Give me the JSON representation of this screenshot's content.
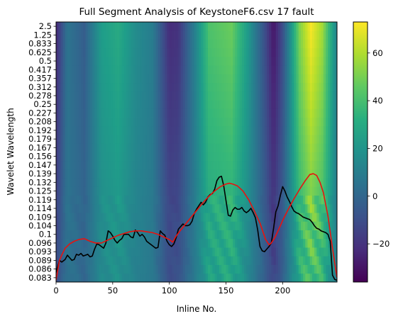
{
  "chart_data": {
    "type": "heatmap",
    "title": "Full Segment Analysis of KeystoneF6.csv 17 fault",
    "xlabel": "Inline No.",
    "ylabel": "Wavelet Wavelength",
    "xlim": [
      0,
      248
    ],
    "x_ticks": [
      "0",
      "50",
      "100",
      "150",
      "200"
    ],
    "y_tick_labels": [
      "2.5",
      "1.25",
      "0.833",
      "0.625",
      "0.5",
      "0.417",
      "0.357",
      "0.312",
      "0.278",
      "0.25",
      "0.227",
      "0.208",
      "0.192",
      "0.179",
      "0.167",
      "0.156",
      "0.147",
      "0.139",
      "0.132",
      "0.125",
      "0.119",
      "0.114",
      "0.109",
      "0.104",
      "0.1",
      "0.096",
      "0.093",
      "0.089",
      "0.086",
      "0.083"
    ],
    "colormap": "viridis",
    "colorbar": {
      "min": -36,
      "max": 73,
      "ticks": [
        "60",
        "40",
        "20",
        "0",
        "−20"
      ]
    },
    "heatmap_column_profile": {
      "x": [
        0,
        10,
        25,
        40,
        55,
        70,
        85,
        100,
        108,
        120,
        135,
        155,
        170,
        185,
        192,
        200,
        215,
        225,
        235,
        248
      ],
      "value": [
        -24,
        6,
        -4,
        24,
        30,
        17,
        10,
        -22,
        -20,
        6,
        42,
        48,
        22,
        -12,
        -30,
        -10,
        52,
        72,
        58,
        12
      ]
    },
    "series": [
      {
        "color": "#000000",
        "x": [
          0,
          3,
          5,
          8,
          10,
          12,
          14,
          16,
          18,
          20,
          22,
          24,
          26,
          28,
          30,
          32,
          34,
          36,
          38,
          40,
          42,
          44,
          46,
          48,
          50,
          52,
          54,
          56,
          58,
          60,
          62,
          64,
          66,
          68,
          70,
          72,
          74,
          76,
          78,
          80,
          82,
          84,
          86,
          88,
          90,
          92,
          94,
          96,
          98,
          100,
          102,
          104,
          106,
          108,
          110,
          112,
          114,
          116,
          118,
          120,
          122,
          124,
          126,
          128,
          130,
          132,
          134,
          136,
          138,
          140,
          142,
          144,
          146,
          148,
          150,
          152,
          154,
          156,
          158,
          160,
          162,
          164,
          166,
          168,
          170,
          172,
          174,
          176,
          178,
          180,
          182,
          184,
          186,
          188,
          190,
          192,
          194,
          196,
          198,
          200,
          202,
          204,
          206,
          208,
          210,
          212,
          214,
          216,
          218,
          220,
          222,
          224,
          226,
          228,
          230,
          232,
          234,
          236,
          238,
          240,
          242,
          244,
          246,
          248
        ],
        "y": [
          0.6,
          2.0,
          1.8,
          2.1,
          2.6,
          2.3,
          2.0,
          2.1,
          2.7,
          2.6,
          2.8,
          2.5,
          2.6,
          2.7,
          2.4,
          2.5,
          3.3,
          3.9,
          3.8,
          3.6,
          3.4,
          4.0,
          5.4,
          5.2,
          4.8,
          4.3,
          4.0,
          4.3,
          4.5,
          5.0,
          5.0,
          5.0,
          4.7,
          4.6,
          5.5,
          5.2,
          4.8,
          5.0,
          4.7,
          4.2,
          4.0,
          3.8,
          3.6,
          3.4,
          3.5,
          5.4,
          5.1,
          4.9,
          4.2,
          3.8,
          3.6,
          3.9,
          4.6,
          5.6,
          5.9,
          6.2,
          6.0,
          6.0,
          6.1,
          6.5,
          7.4,
          7.9,
          8.3,
          8.7,
          8.4,
          8.7,
          9.3,
          9.6,
          9.7,
          10.2,
          11.2,
          11.6,
          11.7,
          10.6,
          8.9,
          7.2,
          7.1,
          7.8,
          8.1,
          7.9,
          7.9,
          8.1,
          7.7,
          7.5,
          7.7,
          8.0,
          7.5,
          6.9,
          5.5,
          3.6,
          3.1,
          3.0,
          3.3,
          3.6,
          4.0,
          5.7,
          7.6,
          8.3,
          9.5,
          10.5,
          10.0,
          9.3,
          8.8,
          8.2,
          7.7,
          7.5,
          7.4,
          7.2,
          7.0,
          6.9,
          6.8,
          6.7,
          6.4,
          6.0,
          5.7,
          5.6,
          5.4,
          5.3,
          5.2,
          5.0,
          4.2,
          0.3,
          -0.2,
          -0.3
        ]
      },
      {
        "color": "#e8130f",
        "x": [
          0,
          3,
          5,
          8,
          12,
          16,
          20,
          25,
          30,
          35,
          40,
          45,
          50,
          55,
          60,
          65,
          70,
          75,
          80,
          85,
          90,
          95,
          100,
          103,
          106,
          110,
          115,
          120,
          125,
          130,
          135,
          140,
          145,
          150,
          153,
          156,
          160,
          165,
          170,
          175,
          180,
          185,
          188,
          190,
          193,
          197,
          200,
          205,
          210,
          215,
          220,
          224,
          227,
          230,
          233,
          236,
          240,
          244,
          248
        ],
        "y": [
          -0.3,
          2.0,
          2.6,
          3.4,
          3.9,
          4.2,
          4.4,
          4.5,
          4.2,
          4.0,
          4.0,
          4.3,
          4.6,
          4.9,
          5.1,
          5.3,
          5.4,
          5.4,
          5.3,
          5.2,
          5.0,
          4.7,
          4.4,
          4.1,
          4.8,
          5.5,
          6.3,
          7.1,
          7.9,
          8.7,
          9.4,
          10.0,
          10.5,
          10.8,
          10.9,
          10.8,
          10.6,
          10.0,
          9.0,
          7.7,
          6.3,
          4.4,
          3.8,
          4.0,
          4.6,
          5.7,
          6.6,
          7.9,
          9.1,
          10.2,
          11.2,
          11.9,
          12.0,
          11.8,
          11.0,
          9.8,
          7.1,
          3.4,
          0.0
        ]
      }
    ]
  }
}
